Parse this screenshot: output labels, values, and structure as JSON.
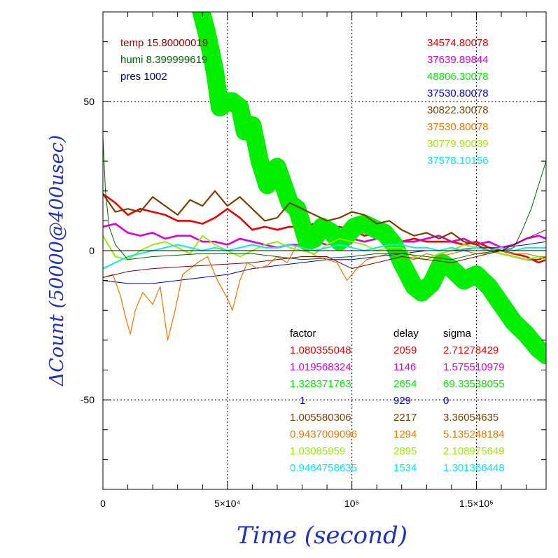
{
  "chart_data": {
    "type": "line",
    "xlabel": "Time (second)",
    "ylabel": "ΔCount (50000@400usec)",
    "xlim": [
      0,
      178000
    ],
    "ylim": [
      -80,
      80
    ],
    "x_ticks": [
      {
        "value": 0,
        "label": "0"
      },
      {
        "value": 50000,
        "label": "5×10⁴"
      },
      {
        "value": 100000,
        "label": "10⁵"
      },
      {
        "value": 150000,
        "label": "1.5×10⁵"
      }
    ],
    "y_ticks": [
      {
        "value": 50,
        "label": "50"
      },
      {
        "value": 0,
        "label": "0"
      },
      {
        "value": -50,
        "label": "-50"
      }
    ],
    "grid": true,
    "env": [
      {
        "text": "temp 15.80000019",
        "color": "#8b0000"
      },
      {
        "text": "humi 8.399999619",
        "color": "#006400"
      },
      {
        "text": "pres 1002",
        "color": "#00008b"
      }
    ],
    "table_headers": [
      "factor",
      "delay",
      "sigma"
    ],
    "series": [
      {
        "color": "#ee0000",
        "mean": "34574.80078",
        "factor": "1.080355048",
        "delay": "2059",
        "sigma": "2.71278429",
        "x": [
          0,
          5000,
          10000,
          15000,
          20000,
          25000,
          30000,
          35000,
          40000,
          45000,
          50000,
          55000,
          60000,
          65000,
          70000,
          75000,
          80000,
          85000,
          90000,
          95000,
          100000,
          105000,
          110000,
          115000,
          120000,
          125000,
          130000,
          135000,
          140000,
          145000,
          150000,
          155000,
          160000,
          165000,
          170000,
          175000,
          178000
        ],
        "y": [
          19,
          16,
          12,
          14,
          13,
          12,
          10,
          10,
          9,
          11,
          14,
          11,
          7,
          8,
          7,
          8,
          8,
          9,
          7,
          8,
          7,
          5,
          6,
          5,
          3,
          4,
          3,
          3,
          3,
          2,
          3,
          1,
          0,
          -1,
          -2,
          -4,
          -3
        ]
      },
      {
        "color": "#dd00dd",
        "mean": "37639.89844",
        "factor": "1.019568324",
        "delay": "1146",
        "sigma": "1.575510979",
        "x": [
          0,
          5000,
          10000,
          15000,
          20000,
          25000,
          30000,
          35000,
          40000,
          45000,
          50000,
          55000,
          60000,
          65000,
          70000,
          75000,
          80000,
          85000,
          90000,
          95000,
          100000,
          105000,
          110000,
          115000,
          120000,
          125000,
          130000,
          135000,
          140000,
          145000,
          150000,
          155000,
          160000,
          165000,
          170000,
          175000,
          178000
        ],
        "y": [
          8,
          9,
          6,
          5,
          6,
          4,
          5,
          5,
          3,
          3,
          2,
          4,
          3,
          2,
          1,
          2,
          2,
          3,
          2,
          3,
          4,
          3,
          4,
          5,
          3,
          3,
          4,
          5,
          3,
          4,
          2,
          3,
          1,
          2,
          4,
          5,
          4
        ]
      },
      {
        "color": "#00ee00",
        "mean": "48806.30078",
        "factor": "1.328371763",
        "delay": "2654",
        "sigma": "69.33538055",
        "x": [
          38000,
          42000,
          45000,
          47000,
          50000,
          52000,
          55000,
          57000,
          60000,
          63000,
          66000,
          70000,
          75000,
          78000,
          82000,
          85000,
          88000,
          92000,
          95000,
          98000,
          101000,
          105000,
          110000,
          113000,
          117000,
          120000,
          125000,
          128000,
          132000,
          136000,
          140000,
          145000,
          150000,
          155000,
          160000,
          165000,
          170000,
          175000,
          178000
        ],
        "y": [
          85,
          72,
          60,
          48,
          50,
          50,
          48,
          40,
          42,
          30,
          22,
          28,
          16,
          14,
          3,
          4,
          8,
          6,
          3,
          5,
          8,
          9,
          7,
          6,
          2,
          -4,
          -12,
          -14,
          -11,
          -4,
          -6,
          -10,
          -8,
          -12,
          -18,
          -24,
          -28,
          -33,
          -35
        ]
      },
      {
        "color": "#0000cc",
        "mean": "37530.80078",
        "factor": "1",
        "delay": "929",
        "sigma": "0",
        "x": [
          0,
          10000,
          20000,
          30000,
          40000,
          50000,
          60000,
          70000,
          80000,
          90000,
          100000,
          110000,
          120000,
          130000,
          140000,
          150000,
          160000,
          170000,
          178000
        ],
        "y": [
          -10,
          -11,
          -11,
          -10,
          -9,
          -8,
          -6,
          -5,
          -4,
          -3,
          -3,
          -2,
          -1,
          0,
          0,
          1,
          1,
          2,
          3
        ]
      },
      {
        "color": "#7b3f00",
        "mean": "30822.30078",
        "factor": "1.005580306",
        "delay": "2217",
        "sigma": "3.36054635",
        "x": [
          0,
          5000,
          10000,
          15000,
          20000,
          25000,
          30000,
          35000,
          40000,
          45000,
          50000,
          55000,
          60000,
          65000,
          70000,
          75000,
          80000,
          85000,
          90000,
          95000,
          100000,
          105000,
          110000,
          115000,
          120000,
          125000,
          130000,
          135000,
          140000,
          145000,
          150000,
          155000,
          160000,
          165000,
          170000,
          175000,
          178000
        ],
        "y": [
          19,
          13,
          14,
          13,
          18,
          15,
          12,
          17,
          15,
          20,
          15,
          18,
          14,
          10,
          11,
          16,
          14,
          12,
          10,
          11,
          13,
          12,
          9,
          10,
          7,
          5,
          6,
          4,
          6,
          3,
          2,
          0,
          -1,
          -2,
          -3,
          -3,
          -2
        ]
      },
      {
        "color": "#ee7700",
        "mean": "37530.80078",
        "factor": "0.9437009096",
        "delay": "1294",
        "sigma": "5.135248184",
        "x": [
          0,
          4000,
          7000,
          9000,
          11000,
          13000,
          16000,
          20000,
          23000,
          26000,
          29000,
          32000,
          35000,
          38000,
          42000,
          46000,
          50000,
          52000,
          55000,
          58000,
          62000,
          66000,
          70000,
          74000,
          78000,
          82000,
          86000,
          90000,
          94000,
          98000,
          102000,
          106000,
          110000,
          115000,
          120000,
          125000,
          130000,
          135000,
          140000,
          145000,
          150000,
          155000,
          160000,
          165000,
          170000,
          175000,
          178000
        ],
        "y": [
          -9,
          -8,
          -15,
          -22,
          -28,
          -20,
          -14,
          -18,
          -12,
          -30,
          -20,
          -8,
          -6,
          -4,
          -2,
          -10,
          -16,
          -20,
          -10,
          -4,
          -6,
          -5,
          -2,
          -4,
          2,
          0,
          -2,
          -3,
          -4,
          -10,
          -6,
          -3,
          -2,
          -1,
          -2,
          -3,
          -1,
          -2,
          -1,
          0,
          -1,
          -1,
          0,
          -1,
          -1,
          -2,
          -2
        ]
      },
      {
        "color": "#99ee00",
        "mean": "30779.90039",
        "factor": "1.03085959",
        "delay": "2895",
        "sigma": "2.108975649",
        "x": [
          0,
          5000,
          10000,
          15000,
          20000,
          25000,
          30000,
          35000,
          40000,
          45000,
          50000,
          55000,
          60000,
          65000,
          70000,
          75000,
          80000,
          85000,
          90000,
          95000,
          100000,
          105000,
          110000,
          115000,
          120000,
          125000,
          130000,
          135000,
          140000,
          145000,
          150000,
          155000,
          160000,
          165000,
          170000,
          175000,
          178000
        ],
        "y": [
          5,
          -2,
          -3,
          0,
          2,
          3,
          1,
          -1,
          5,
          2,
          0,
          -2,
          0,
          2,
          3,
          1,
          0,
          -1,
          2,
          4,
          3,
          2,
          0,
          1,
          1,
          -2,
          -3,
          -1,
          0,
          2,
          1,
          0,
          -1,
          -2,
          -3,
          -2,
          -3
        ]
      },
      {
        "color": "#00eeee",
        "mean": "37578.10156",
        "factor": "0.9464758635",
        "delay": "1534",
        "sigma": "1.301366448",
        "x": [
          0,
          5000,
          10000,
          15000,
          20000,
          25000,
          30000,
          35000,
          40000,
          45000,
          50000,
          55000,
          60000,
          65000,
          70000,
          75000,
          80000,
          85000,
          90000,
          95000,
          100000,
          105000,
          110000,
          115000,
          120000,
          125000,
          130000,
          135000,
          140000,
          145000,
          150000,
          155000,
          160000,
          165000,
          170000,
          175000,
          178000
        ],
        "y": [
          -6,
          -4,
          -2,
          -1,
          0,
          1,
          2,
          1,
          0,
          1,
          0,
          1,
          2,
          1,
          1,
          2,
          1,
          0,
          1,
          2,
          1,
          0,
          1,
          2,
          2,
          1,
          1,
          0,
          1,
          0,
          1,
          0,
          1,
          0,
          1,
          1,
          1
        ]
      },
      {
        "color": "#006400",
        "x": [
          0,
          1000,
          2500,
          5000,
          10000,
          20000,
          40000,
          60000,
          80000,
          100000,
          110000,
          120000,
          130000,
          140000,
          150000,
          160000,
          165000,
          168000,
          172000,
          175000,
          178000
        ],
        "y": [
          38,
          20,
          8,
          2,
          -3,
          -2,
          -1,
          -1,
          -3,
          -2,
          -1,
          -1,
          -2,
          -3,
          -1,
          0,
          1,
          6,
          14,
          22,
          30
        ]
      },
      {
        "color": "#8b0000",
        "x": [
          0,
          5000,
          10000,
          20000,
          40000,
          60000,
          70000,
          80000,
          90000,
          100000,
          110000,
          120000,
          130000,
          140000,
          150000,
          160000,
          170000,
          178000
        ],
        "y": [
          -9,
          -8,
          -7,
          -6,
          -5,
          -4,
          -3,
          -2,
          -2,
          -6,
          -4,
          -2,
          -3,
          -4,
          -2,
          0,
          4,
          7
        ]
      }
    ]
  }
}
